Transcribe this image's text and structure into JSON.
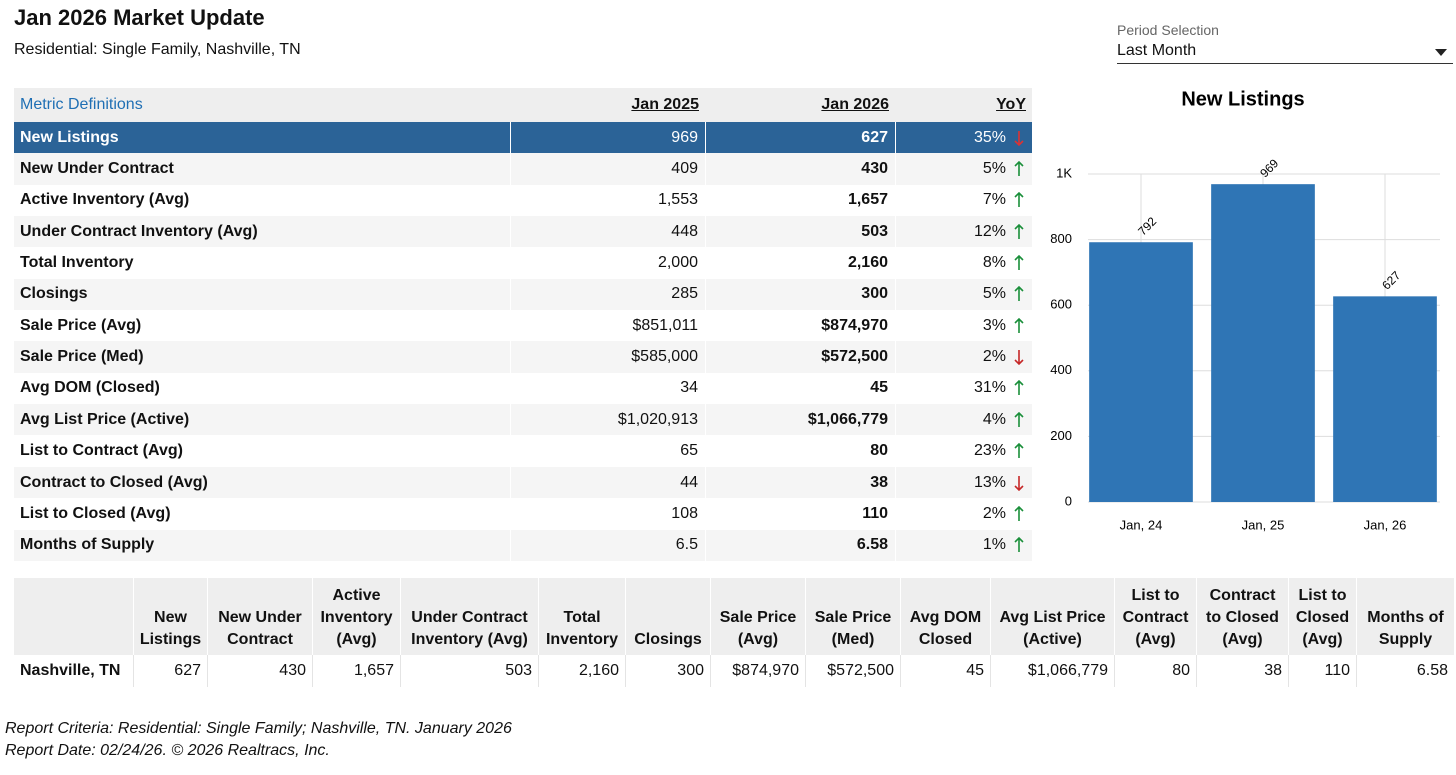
{
  "header": {
    "title": "Jan 2026 Market Update",
    "subtitle": "Residential: Single Family, Nashville, TN"
  },
  "period": {
    "label": "Period Selection",
    "value": "Last Month"
  },
  "table": {
    "columns": [
      "Metric Definitions",
      "Jan 2025",
      "Jan 2026",
      "YoY"
    ],
    "highlighted_row": 0,
    "rows": [
      [
        "New Listings",
        "969",
        "627",
        "35%"
      ],
      [
        "New Under Contract",
        "409",
        "430",
        "5%"
      ],
      [
        "Active Inventory (Avg)",
        "1,553",
        "1,657",
        "7%"
      ],
      [
        "Under Contract Inventory (Avg)",
        "448",
        "503",
        "12%"
      ],
      [
        "Total Inventory",
        "2,000",
        "2,160",
        "8%"
      ],
      [
        "Closings",
        "285",
        "300",
        "5%"
      ],
      [
        "Sale Price (Avg)",
        "$851,011",
        "$874,970",
        "3%"
      ],
      [
        "Sale Price (Med)",
        "$585,000",
        "$572,500",
        "2%"
      ],
      [
        "Avg DOM (Closed)",
        "34",
        "45",
        "31%"
      ],
      [
        "Avg List Price (Active)",
        "$1,020,913",
        "$1,066,779",
        "4%"
      ],
      [
        "List to Contract (Avg)",
        "65",
        "80",
        "23%"
      ],
      [
        "Contract to Closed (Avg)",
        "44",
        "38",
        "13%"
      ],
      [
        "List to Closed (Avg)",
        "108",
        "110",
        "2%"
      ],
      [
        "Months of Supply",
        "6.5",
        "6.58",
        "1%"
      ]
    ],
    "yoy_direction": [
      "down",
      "up",
      "up",
      "up",
      "up",
      "up",
      "up",
      "down",
      "up",
      "up",
      "up",
      "down",
      "up",
      "up"
    ],
    "up_color": "#1a8f3a",
    "down_color": "#c62828"
  },
  "chart_data": {
    "type": "bar",
    "title": "New Listings",
    "categories": [
      "Jan, 24",
      "Jan, 25",
      "Jan, 26"
    ],
    "values": [
      792,
      969,
      627
    ],
    "color": "#2f75b5",
    "ylim": [
      0,
      1000
    ],
    "yticks": [
      0,
      200,
      400,
      600,
      800,
      {
        "value": 1000,
        "label": "1K"
      }
    ],
    "grid": true
  },
  "summary": {
    "columns": [
      "New Listings",
      "New Under Contract",
      "Active Inventory (Avg)",
      "Under Contract Inventory (Avg)",
      "Total Inventory",
      "Closings",
      "Sale Price (Avg)",
      "Sale Price (Med)",
      "Avg DOM Closed",
      "Avg List Price (Active)",
      "List to Contract (Avg)",
      "Contract to Closed (Avg)",
      "List to Closed (Avg)",
      "Months of Supply"
    ],
    "rows": [
      [
        "Nashville, TN",
        "627",
        "430",
        "1,657",
        "503",
        "2,160",
        "300",
        "$874,970",
        "$572,500",
        "45",
        "$1,066,779",
        "80",
        "38",
        "110",
        "6.58"
      ]
    ]
  },
  "footer": {
    "lines": [
      "Report Criteria: Residential: Single Family; Nashville, TN. January 2026",
      "Report Date: 02/24/26. © 2026 Realtracs, Inc."
    ]
  }
}
